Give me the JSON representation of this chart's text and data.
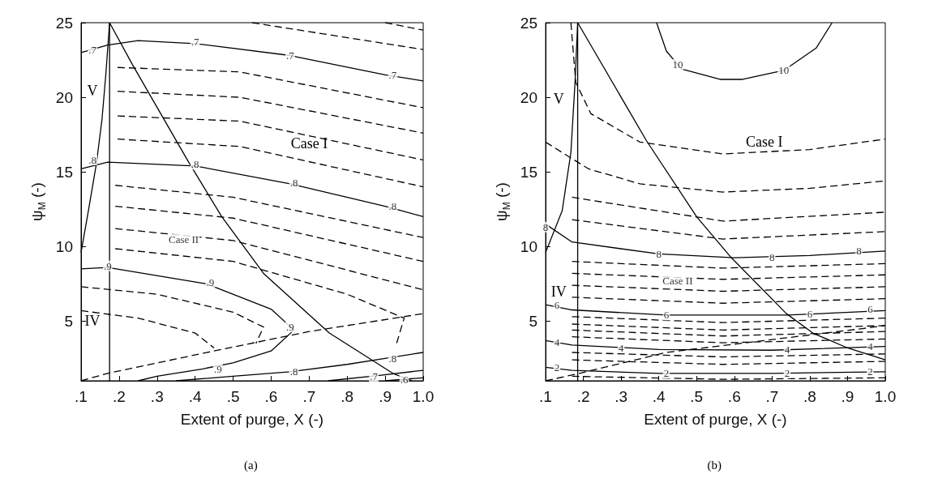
{
  "chart_data": [
    {
      "type": "line",
      "title": "(a)",
      "xlabel": "Extent of purge, X (-)",
      "ylabel": "ψ$_{M}$ (-)",
      "xlim": [
        0.1,
        1.0
      ],
      "ylim": [
        1,
        25
      ],
      "xticks": [
        {
          "value": 0.1,
          "label": ".1"
        },
        {
          "value": 0.2,
          "label": ".2"
        },
        {
          "value": 0.3,
          "label": ".3"
        },
        {
          "value": 0.4,
          "label": ".4"
        },
        {
          "value": 0.5,
          "label": ".5"
        },
        {
          "value": 0.6,
          "label": ".6"
        },
        {
          "value": 0.7,
          "label": ".7"
        },
        {
          "value": 0.8,
          "label": ".8"
        },
        {
          "value": 0.9,
          "label": ".9"
        },
        {
          "value": 1.0,
          "label": "1.0"
        }
      ],
      "yticks": [
        5,
        10,
        15,
        20,
        25
      ],
      "marker": "none",
      "line_style": "solid",
      "grid": false,
      "series": [
        {
          "color": "#000000",
          "x": [
            0.1,
            0.17,
            0.25,
            0.4,
            0.65,
            0.9,
            1.0
          ],
          "values": [
            23.0,
            23.5,
            23.8,
            23.6,
            22.8,
            21.5,
            21.1
          ]
        },
        {
          "color": "#000000",
          "x": [
            0.1,
            0.17,
            0.4,
            0.65,
            0.9,
            1.0
          ],
          "values": [
            15.2,
            15.65,
            15.4,
            14.2,
            12.7,
            12.0
          ]
        },
        {
          "color": "#000000",
          "x": [
            0.1,
            0.17,
            0.43,
            0.6,
            0.66,
            0.6,
            0.5,
            0.42,
            0.3,
            0.25
          ],
          "values": [
            8.5,
            8.6,
            7.5,
            5.8,
            4.4,
            3.0,
            2.2,
            1.8,
            1.3,
            1.0
          ]
        },
        {
          "color": "#000000",
          "x": [
            0.35,
            0.5,
            0.65,
            0.8,
            0.9,
            1.0
          ],
          "values": [
            1.0,
            1.3,
            1.6,
            2.1,
            2.5,
            2.9
          ]
        },
        {
          "color": "#000000",
          "x": [
            0.75,
            0.88,
            1.0
          ],
          "values": [
            1.0,
            1.35,
            1.7
          ]
        },
        {
          "color": "#000000",
          "x": [
            0.9,
            1.0
          ],
          "values": [
            1.0,
            1.2
          ]
        },
        {
          "color": "#000000",
          "line_style": "dashed",
          "x": [
            0.55,
            1.0
          ],
          "values": [
            25,
            23.2
          ]
        },
        {
          "color": "#000000",
          "line_style": "dashed",
          "x": [
            0.9,
            1.0
          ],
          "values": [
            25,
            24.5
          ]
        },
        {
          "color": "#000000",
          "line_style": "dashed",
          "x": [
            0.196,
            0.518,
            1.0
          ],
          "values": [
            22.0,
            21.7,
            19.3
          ]
        },
        {
          "color": "#000000",
          "line_style": "dashed",
          "x": [
            0.196,
            0.518,
            1.0
          ],
          "values": [
            20.4,
            20.0,
            17.6
          ]
        },
        {
          "color": "#000000",
          "line_style": "dashed",
          "x": [
            0.196,
            0.518,
            1.0
          ],
          "values": [
            18.75,
            18.4,
            15.8
          ]
        },
        {
          "color": "#000000",
          "line_style": "dashed",
          "x": [
            0.196,
            0.518,
            1.0
          ],
          "values": [
            17.2,
            16.7,
            14.0
          ]
        },
        {
          "color": "#000000",
          "line_style": "dashed",
          "x": [
            0.19,
            0.5,
            1.0
          ],
          "values": [
            14.1,
            13.3,
            10.6
          ]
        },
        {
          "color": "#000000",
          "line_style": "dashed",
          "x": [
            0.19,
            0.5,
            1.0
          ],
          "values": [
            12.7,
            11.9,
            9.0
          ]
        },
        {
          "color": "#000000",
          "line_style": "dashed",
          "x": [
            0.19,
            0.5,
            1.0
          ],
          "values": [
            11.2,
            10.4,
            7.1
          ]
        },
        {
          "color": "#000000",
          "line_style": "dashed",
          "x": [
            0.19,
            0.5,
            0.8,
            0.95,
            0.93
          ],
          "values": [
            9.85,
            9.0,
            6.8,
            5.2,
            3.5
          ]
        },
        {
          "color": "#000000",
          "line_style": "dashed",
          "x": [
            0.1,
            0.3,
            0.5,
            0.58,
            0.56
          ],
          "values": [
            7.3,
            6.8,
            5.6,
            4.6,
            3.5
          ]
        },
        {
          "color": "#000000",
          "line_style": "dashed",
          "x": [
            0.1,
            0.25,
            0.4,
            0.45
          ],
          "values": [
            5.7,
            5.2,
            4.2,
            3.2
          ]
        },
        {
          "color": "#000000",
          "x": [
            0.175,
            0.175
          ],
          "values": [
            1,
            25
          ]
        },
        {
          "color": "#000000",
          "x": [
            0.1,
            0.12,
            0.14,
            0.155,
            0.165,
            0.175
          ],
          "values": [
            9.6,
            12.5,
            15.5,
            18.5,
            21.5,
            25
          ]
        },
        {
          "color": "#000000",
          "x": [
            0.175,
            0.235,
            0.383,
            0.47,
            0.58,
            0.753,
            0.92,
            0.97
          ],
          "values": [
            25,
            22.2,
            15.65,
            12.0,
            8.2,
            4.2,
            1.5,
            1.0
          ]
        },
        {
          "color": "#000000",
          "line_style": "dashed",
          "x": [
            0.1,
            0.17,
            0.45,
            0.7,
            1.0
          ],
          "values": [
            1.0,
            1.5,
            3.0,
            4.3,
            5.5
          ]
        }
      ],
      "annotations": [
        {
          "text": ".7",
          "x": 0.13,
          "y": 23.2
        },
        {
          "text": ".7",
          "x": 0.4,
          "y": 23.7
        },
        {
          "text": ".7",
          "x": 0.65,
          "y": 22.8
        },
        {
          "text": ".7",
          "x": 0.92,
          "y": 21.5
        },
        {
          "text": ".8",
          "x": 0.13,
          "y": 15.8
        },
        {
          "text": ".8",
          "x": 0.4,
          "y": 15.5
        },
        {
          "text": ".8",
          "x": 0.66,
          "y": 14.3
        },
        {
          "text": ".8",
          "x": 0.92,
          "y": 12.7
        },
        {
          "text": ".9",
          "x": 0.17,
          "y": 8.7
        },
        {
          "text": ".9",
          "x": 0.44,
          "y": 7.6
        },
        {
          "text": ".9",
          "x": 0.65,
          "y": 4.6
        },
        {
          "text": ".9",
          "x": 0.46,
          "y": 1.8
        },
        {
          "text": ".8",
          "x": 0.66,
          "y": 1.6
        },
        {
          "text": ".8",
          "x": 0.92,
          "y": 2.5
        },
        {
          "text": ".7",
          "x": 0.87,
          "y": 1.3
        },
        {
          "text": ".6",
          "x": 0.95,
          "y": 1.1
        },
        "Case I",
        {
          "text": "Case II",
          "x": 0.37,
          "y": 10.5
        },
        "V",
        "IV"
      ]
    },
    {
      "type": "line",
      "title": "(b)",
      "xlabel": "Extent of purge, X (-)",
      "ylabel": "ψ$_{M}$ (-)",
      "xlim": [
        0.1,
        1.0
      ],
      "ylim": [
        1,
        25
      ],
      "xticks": [
        {
          "value": 0.1,
          "label": ".1"
        },
        {
          "value": 0.2,
          "label": ".2"
        },
        {
          "value": 0.3,
          "label": ".3"
        },
        {
          "value": 0.4,
          "label": ".4"
        },
        {
          "value": 0.5,
          "label": ".5"
        },
        {
          "value": 0.6,
          "label": ".6"
        },
        {
          "value": 0.7,
          "label": ".7"
        },
        {
          "value": 0.8,
          "label": ".8"
        },
        {
          "value": 0.9,
          "label": ".9"
        },
        {
          "value": 1.0,
          "label": "1.0"
        }
      ],
      "yticks": [
        5,
        10,
        15,
        20,
        25
      ],
      "marker": "none",
      "line_style": "solid",
      "grid": false,
      "series": [
        {
          "color": "#000000",
          "x": [
            0.394,
            0.42,
            0.46,
            0.562,
            0.622,
            0.731,
            0.817,
            0.859
          ],
          "values": [
            25,
            23.1,
            21.9,
            21.2,
            21.2,
            21.8,
            23.3,
            25
          ]
        },
        {
          "color": "#000000",
          "x": [
            0.1,
            0.17,
            0.4,
            0.6,
            0.8,
            1.0
          ],
          "values": [
            11.5,
            10.3,
            9.5,
            9.25,
            9.4,
            9.7
          ]
        },
        {
          "color": "#000000",
          "x": [
            0.1,
            0.17,
            0.42,
            0.74,
            1.0
          ],
          "values": [
            6.1,
            5.75,
            5.4,
            5.4,
            5.7
          ]
        },
        {
          "color": "#000000",
          "x": [
            0.1,
            0.17,
            0.4,
            0.7,
            1.0
          ],
          "values": [
            3.7,
            3.4,
            3.1,
            3.05,
            3.3
          ]
        },
        {
          "color": "#000000",
          "x": [
            0.1,
            0.17,
            0.4,
            0.7,
            1.0
          ],
          "values": [
            1.9,
            1.7,
            1.5,
            1.5,
            1.6
          ]
        },
        {
          "color": "#000000",
          "line_style": "dashed",
          "x": [
            0.167,
            0.18,
            0.22,
            0.35,
            0.57,
            0.8,
            1.0
          ],
          "values": [
            25,
            21,
            18.9,
            17,
            16.2,
            16.5,
            17.2
          ]
        },
        {
          "color": "#000000",
          "line_style": "dashed",
          "x": [
            0.1,
            0.15,
            0.214,
            0.35,
            0.57,
            0.8,
            1.0
          ],
          "values": [
            17,
            16.2,
            15.2,
            14.2,
            13.65,
            13.9,
            14.4
          ]
        },
        {
          "color": "#000000",
          "line_style": "dashed",
          "x": [
            0.17,
            0.57,
            1.0
          ],
          "values": [
            13.3,
            11.7,
            12.3
          ]
        },
        {
          "color": "#000000",
          "line_style": "dashed",
          "x": [
            0.17,
            0.57,
            1.0
          ],
          "values": [
            11.8,
            10.5,
            11.0
          ]
        },
        {
          "color": "#000000",
          "line_style": "dashed",
          "x": [
            0.17,
            0.57,
            1.0
          ],
          "values": [
            9.0,
            8.55,
            8.85
          ]
        },
        {
          "color": "#000000",
          "line_style": "dashed",
          "x": [
            0.17,
            0.57,
            1.0
          ],
          "values": [
            8.2,
            7.8,
            8.1
          ]
        },
        {
          "color": "#000000",
          "line_style": "dashed",
          "x": [
            0.17,
            0.57,
            1.0
          ],
          "values": [
            7.4,
            7.0,
            7.3
          ]
        },
        {
          "color": "#000000",
          "line_style": "dashed",
          "x": [
            0.17,
            0.57,
            1.0
          ],
          "values": [
            6.6,
            6.2,
            6.5
          ]
        },
        {
          "color": "#000000",
          "line_style": "dashed",
          "x": [
            0.17,
            0.57,
            1.0
          ],
          "values": [
            5.3,
            4.9,
            5.2
          ]
        },
        {
          "color": "#000000",
          "line_style": "dashed",
          "x": [
            0.17,
            0.57,
            1.0
          ],
          "values": [
            4.8,
            4.4,
            4.7
          ]
        },
        {
          "color": "#000000",
          "line_style": "dashed",
          "x": [
            0.17,
            0.57,
            1.0
          ],
          "values": [
            4.4,
            4.0,
            4.3
          ]
        },
        {
          "color": "#000000",
          "line_style": "dashed",
          "x": [
            0.17,
            0.57,
            1.0
          ],
          "values": [
            3.95,
            3.55,
            3.8
          ]
        },
        {
          "color": "#000000",
          "line_style": "dashed",
          "x": [
            0.17,
            0.57,
            1.0
          ],
          "values": [
            2.9,
            2.6,
            2.8
          ]
        },
        {
          "color": "#000000",
          "line_style": "dashed",
          "x": [
            0.17,
            0.57,
            1.0
          ],
          "values": [
            2.4,
            2.1,
            2.3
          ]
        },
        {
          "color": "#000000",
          "line_style": "dashed",
          "x": [
            0.17,
            0.57,
            1.0
          ],
          "values": [
            1.3,
            1.1,
            1.2
          ]
        },
        {
          "color": "#000000",
          "x": [
            0.185,
            0.185
          ],
          "values": [
            1,
            25
          ]
        },
        {
          "color": "#000000",
          "x": [
            0.1,
            0.144,
            0.167,
            0.178,
            0.185
          ],
          "values": [
            9.6,
            12.4,
            16.3,
            21,
            25
          ]
        },
        {
          "color": "#000000",
          "x": [
            0.185,
            0.367,
            0.5,
            0.592,
            0.738,
            0.808,
            0.9,
            1.0
          ],
          "values": [
            25,
            17.1,
            12.0,
            9.25,
            5.5,
            4.2,
            3.2,
            2.4
          ]
        },
        {
          "color": "#000000",
          "line_style": "dashed",
          "x": [
            0.1,
            0.19,
            0.42,
            0.94,
            1.0
          ],
          "values": [
            1.0,
            1.5,
            2.9,
            4.5,
            4.7
          ]
        }
      ],
      "annotations": [
        {
          "text": "10",
          "x": 0.45,
          "y": 22.2
        },
        {
          "text": "10",
          "x": 0.731,
          "y": 21.8
        },
        {
          "text": "8",
          "x": 0.1,
          "y": 11.3
        },
        {
          "text": "8",
          "x": 0.4,
          "y": 9.5
        },
        {
          "text": "8",
          "x": 0.7,
          "y": 9.3
        },
        {
          "text": "8",
          "x": 0.93,
          "y": 9.7
        },
        {
          "text": "6",
          "x": 0.13,
          "y": 6.1
        },
        {
          "text": "6",
          "x": 0.42,
          "y": 5.4
        },
        {
          "text": "6",
          "x": 0.8,
          "y": 5.5
        },
        {
          "text": "6",
          "x": 0.96,
          "y": 5.8
        },
        {
          "text": "4",
          "x": 0.13,
          "y": 3.6
        },
        {
          "text": "4",
          "x": 0.3,
          "y": 3.2
        },
        {
          "text": "4",
          "x": 0.74,
          "y": 3.1
        },
        {
          "text": "4",
          "x": 0.96,
          "y": 3.3
        },
        {
          "text": "2",
          "x": 0.13,
          "y": 1.9
        },
        {
          "text": "2",
          "x": 0.42,
          "y": 1.5
        },
        {
          "text": "2",
          "x": 0.74,
          "y": 1.5
        },
        {
          "text": "2",
          "x": 0.96,
          "y": 1.6
        },
        "Case I",
        {
          "text": "Case II",
          "x": 0.45,
          "y": 7.7
        },
        "V",
        "IV"
      ]
    }
  ]
}
